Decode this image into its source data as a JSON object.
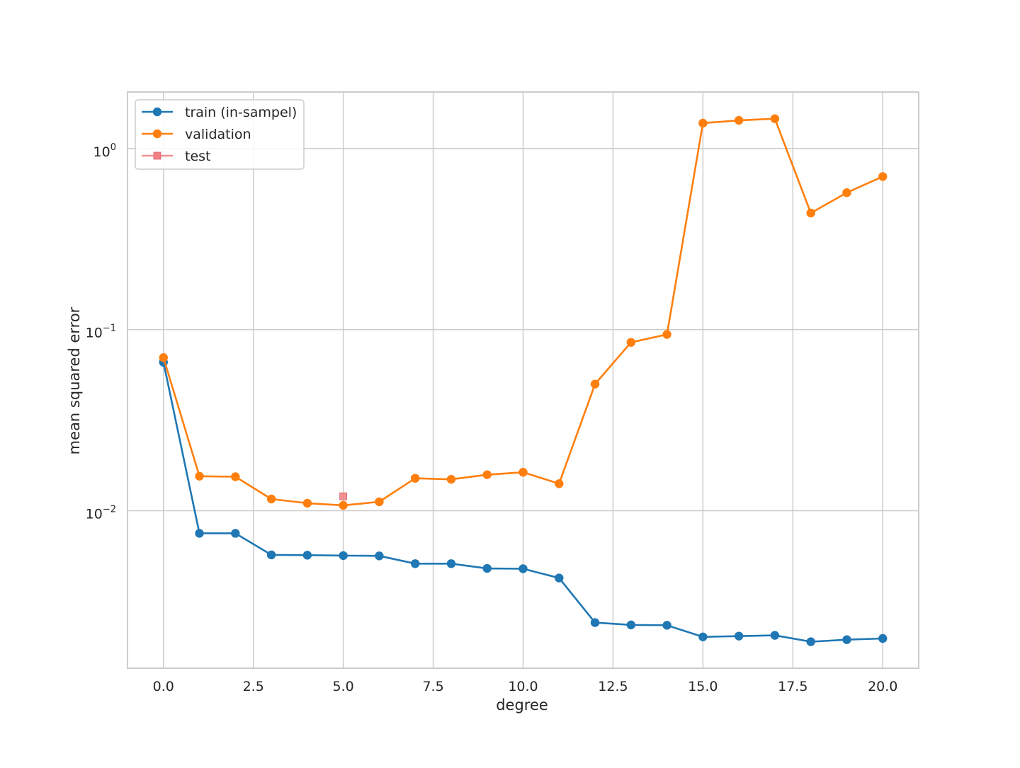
{
  "chart_data": {
    "type": "line",
    "title": "",
    "xlabel": "degree",
    "ylabel": "mean squared error",
    "xlim": [
      -1.0,
      21.0
    ],
    "ylim": [
      0.00135,
      2.05
    ],
    "yscale": "log",
    "grid": true,
    "legend_position": "upper-left",
    "x_ticks": [
      0.0,
      2.5,
      5.0,
      7.5,
      10.0,
      12.5,
      15.0,
      17.5,
      20.0
    ],
    "x_tick_labels": [
      "0.0",
      "2.5",
      "5.0",
      "7.5",
      "10.0",
      "12.5",
      "15.0",
      "17.5",
      "20.0"
    ],
    "y_ticks": [
      {
        "value": 1.0,
        "base": "10",
        "exp": "0"
      },
      {
        "value": 0.1,
        "base": "10",
        "exp": "−1"
      },
      {
        "value": 0.01,
        "base": "10",
        "exp": "−2"
      }
    ],
    "series": [
      {
        "name": "train (in-sampel)",
        "color": "#1f77b4",
        "marker": "circle",
        "line": true,
        "x": [
          0,
          1,
          2,
          3,
          4,
          5,
          6,
          7,
          8,
          9,
          10,
          11,
          12,
          13,
          14,
          15,
          16,
          17,
          18,
          19,
          20
        ],
        "y": [
          0.066,
          0.0075,
          0.0075,
          0.0057,
          0.00568,
          0.00565,
          0.00563,
          0.0051,
          0.0051,
          0.0048,
          0.00478,
          0.00425,
          0.00241,
          0.00234,
          0.00233,
          0.00201,
          0.00203,
          0.00205,
          0.00189,
          0.00194,
          0.00197
        ]
      },
      {
        "name": "validation",
        "color": "#ff7f0e",
        "marker": "circle",
        "line": true,
        "x": [
          0,
          1,
          2,
          3,
          4,
          5,
          6,
          7,
          8,
          9,
          10,
          11,
          12,
          13,
          14,
          15,
          16,
          17,
          18,
          19,
          20
        ],
        "y": [
          0.07,
          0.0155,
          0.0154,
          0.0116,
          0.011,
          0.0107,
          0.0112,
          0.0151,
          0.0149,
          0.0158,
          0.0163,
          0.0141,
          0.05,
          0.085,
          0.094,
          1.38,
          1.43,
          1.46,
          0.44,
          0.57,
          0.7
        ]
      },
      {
        "name": "test",
        "color": "#f08080",
        "marker": "square",
        "line": false,
        "x": [
          5
        ],
        "y": [
          0.012
        ]
      }
    ]
  }
}
